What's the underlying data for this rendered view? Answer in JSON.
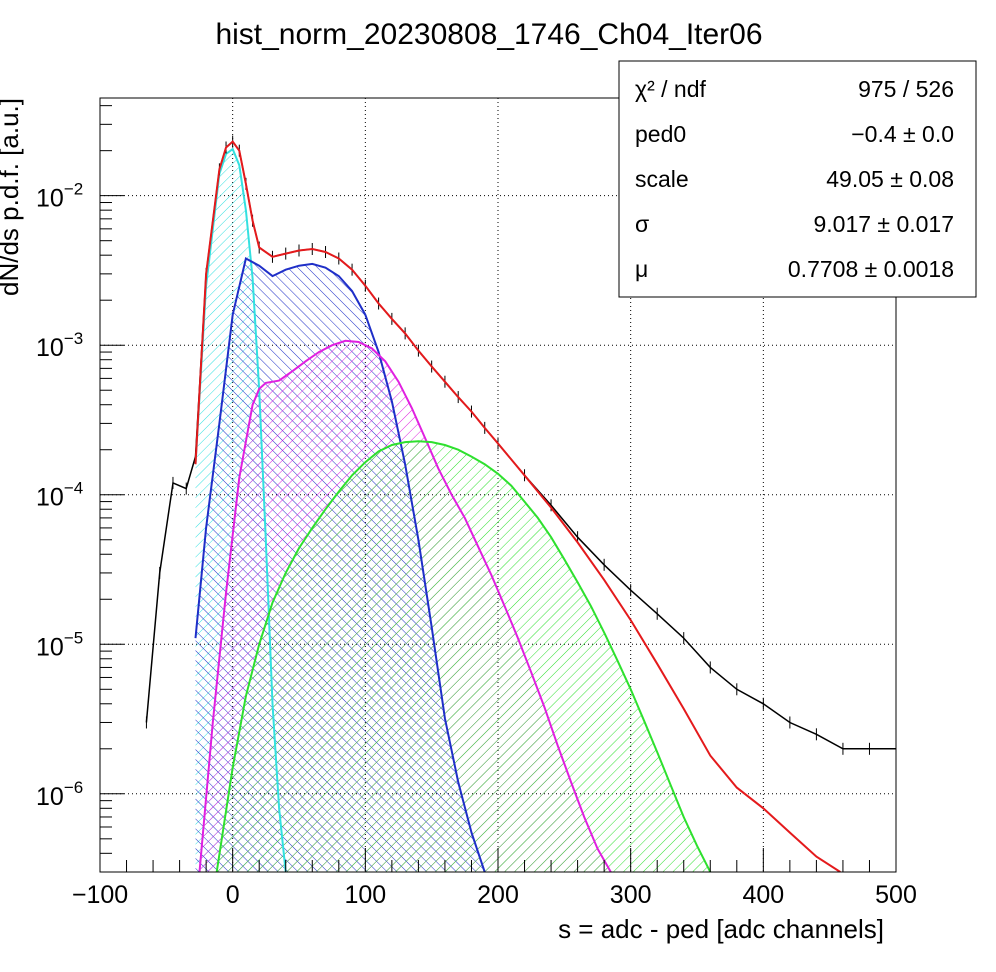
{
  "chart_data": {
    "type": "line",
    "title": "hist_norm_20230808_1746_Ch04_Iter06",
    "xlabel": "s = adc - ped [adc channels]",
    "ylabel": "dN/ds p.d.f. [a.u.]",
    "xlim": [
      -100,
      500
    ],
    "ylim": [
      3e-07,
      0.045
    ],
    "yscale": "log",
    "grid": true,
    "x_ticks": [
      "−100",
      "0",
      "100",
      "200",
      "300",
      "400",
      "500"
    ],
    "x_tick_values": [
      -100,
      0,
      100,
      200,
      300,
      400,
      500
    ],
    "y_ticks": [
      {
        "base": "10",
        "exp": "−2",
        "value": 0.01
      },
      {
        "base": "10",
        "exp": "−3",
        "value": 0.001
      },
      {
        "base": "10",
        "exp": "−4",
        "value": 0.0001
      },
      {
        "base": "10",
        "exp": "−5",
        "value": 1e-05
      },
      {
        "base": "10",
        "exp": "−6",
        "value": 1e-06
      }
    ],
    "stats": [
      {
        "name": "χ² / ndf",
        "value": "975 / 526"
      },
      {
        "name": "ped0",
        "value": "−0.4 ± 0.0"
      },
      {
        "name": "scale",
        "value": "49.05 ± 0.08"
      },
      {
        "name": "σ",
        "value": "9.017 ± 0.017"
      },
      {
        "name": "μ",
        "value": "0.7708 ± 0.0018"
      }
    ],
    "series": [
      {
        "role": "data",
        "color": "#000000",
        "x": [
          -65,
          -55,
          -45,
          -35,
          -28,
          -20,
          -10,
          -5,
          0,
          5,
          10,
          15,
          20,
          30,
          40,
          50,
          60,
          70,
          80,
          90,
          100,
          110,
          120,
          130,
          140,
          150,
          160,
          170,
          180,
          190,
          200,
          220,
          240,
          260,
          280,
          300,
          320,
          340,
          360,
          380,
          400,
          420,
          440,
          460,
          480,
          500
        ],
        "y": [
          3e-06,
          3e-05,
          0.00012,
          0.00011,
          0.00018,
          0.003,
          0.015,
          0.021,
          0.023,
          0.02,
          0.012,
          0.0068,
          0.0045,
          0.0039,
          0.0041,
          0.0043,
          0.0044,
          0.0042,
          0.0038,
          0.0032,
          0.0025,
          0.0019,
          0.0015,
          0.0012,
          0.00092,
          0.00072,
          0.00057,
          0.00045,
          0.00036,
          0.00028,
          0.00022,
          0.000135,
          8.5e-05,
          5.2e-05,
          3.4e-05,
          2.3e-05,
          1.6e-05,
          1.1e-05,
          7e-06,
          5e-06,
          4e-06,
          3e-06,
          2.5e-06,
          2e-06,
          2e-06,
          2e-06
        ]
      },
      {
        "role": "total fit",
        "color": "#e41a1c",
        "x": [
          -28,
          -20,
          -10,
          -5,
          0,
          5,
          10,
          15,
          20,
          30,
          40,
          50,
          60,
          70,
          80,
          90,
          100,
          110,
          120,
          130,
          140,
          150,
          160,
          170,
          180,
          190,
          200,
          220,
          240,
          260,
          280,
          300,
          320,
          340,
          360,
          380,
          400,
          420,
          440,
          458
        ],
        "y": [
          0.00016,
          0.003,
          0.015,
          0.021,
          0.023,
          0.02,
          0.012,
          0.0068,
          0.0045,
          0.0039,
          0.0041,
          0.0043,
          0.0044,
          0.0042,
          0.0038,
          0.0032,
          0.0025,
          0.0019,
          0.0015,
          0.0012,
          0.00092,
          0.00072,
          0.00057,
          0.00045,
          0.00036,
          0.00028,
          0.00022,
          0.000135,
          8.2e-05,
          4.8e-05,
          2.7e-05,
          1.45e-05,
          7.4e-06,
          3.7e-06,
          1.8e-06,
          1.1e-06,
          8e-07,
          5.5e-07,
          3.8e-07,
          3e-07
        ]
      },
      {
        "role": "component 0",
        "color": "#33e0e0",
        "x": [
          -28,
          -20,
          -10,
          -5,
          0,
          5,
          10,
          15,
          20,
          25,
          30,
          35,
          40
        ],
        "y": [
          0.00016,
          0.0025,
          0.014,
          0.019,
          0.0205,
          0.016,
          0.008,
          0.0028,
          0.0005,
          5e-05,
          4e-06,
          8e-07,
          3e-07
        ]
      },
      {
        "role": "component 1",
        "color": "#1f2fc8",
        "x": [
          -28,
          -20,
          -10,
          0,
          10,
          20,
          30,
          40,
          50,
          60,
          70,
          80,
          90,
          100,
          110,
          120,
          130,
          140,
          150,
          160,
          170,
          180,
          190
        ],
        "y": [
          1.1e-05,
          6e-05,
          0.0003,
          0.0016,
          0.0038,
          0.0034,
          0.0029,
          0.0032,
          0.0034,
          0.0035,
          0.0033,
          0.0029,
          0.0023,
          0.0016,
          0.0009,
          0.00042,
          0.00016,
          5e-05,
          1.3e-05,
          3.2e-06,
          1.2e-06,
          5.5e-07,
          3e-07
        ]
      },
      {
        "role": "component 2",
        "color": "#e020e0",
        "x": [
          -25,
          -15,
          -5,
          5,
          15,
          20,
          25,
          35,
          45,
          55,
          65,
          75,
          85,
          95,
          105,
          115,
          125,
          135,
          145,
          155,
          165,
          175,
          185,
          195,
          205,
          215,
          225,
          235,
          245,
          255,
          265,
          275,
          285
        ],
        "y": [
          3e-07,
          3e-06,
          2.2e-05,
          0.00013,
          0.0004,
          0.00051,
          0.00056,
          0.00058,
          0.00067,
          0.00078,
          0.0009,
          0.001,
          0.00107,
          0.00105,
          0.00095,
          0.00078,
          0.00057,
          0.00038,
          0.00024,
          0.00015,
          0.0001,
          7e-05,
          4.5e-05,
          2.9e-05,
          1.8e-05,
          1.1e-05,
          6.5e-06,
          3.8e-06,
          2.1e-06,
          1.2e-06,
          7e-07,
          4.3e-07,
          3e-07
        ]
      },
      {
        "role": "component 3",
        "color": "#2ee02e",
        "x": [
          -12,
          0,
          10,
          20,
          30,
          40,
          50,
          60,
          70,
          80,
          90,
          100,
          110,
          120,
          130,
          140,
          150,
          160,
          170,
          180,
          190,
          200,
          210,
          220,
          230,
          240,
          250,
          260,
          270,
          280,
          290,
          300,
          310,
          320,
          330,
          340,
          350,
          360
        ],
        "y": [
          3e-07,
          1.5e-06,
          4.5e-06,
          1e-05,
          1.9e-05,
          3e-05,
          4.4e-05,
          6e-05,
          8e-05,
          0.000105,
          0.000135,
          0.000165,
          0.000195,
          0.000215,
          0.000225,
          0.000228,
          0.000225,
          0.000215,
          0.0002,
          0.00018,
          0.00016,
          0.000138,
          0.000115,
          9e-05,
          7e-05,
          5.2e-05,
          3.7e-05,
          2.6e-05,
          1.8e-05,
          1.2e-05,
          7.8e-06,
          5e-06,
          3.1e-06,
          1.9e-06,
          1.15e-06,
          7e-07,
          4.5e-07,
          3e-07
        ]
      }
    ]
  }
}
